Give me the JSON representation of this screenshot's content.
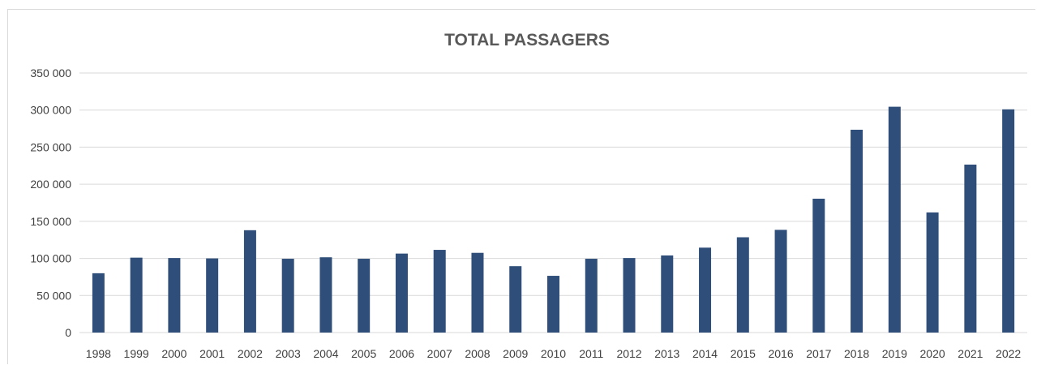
{
  "chart_data": {
    "type": "bar",
    "title": "TOTAL PASSAGERS",
    "xlabel": "",
    "ylabel": "",
    "categories": [
      "1998",
      "1999",
      "2000",
      "2001",
      "2002",
      "2003",
      "2004",
      "2005",
      "2006",
      "2007",
      "2008",
      "2009",
      "2010",
      "2011",
      "2012",
      "2013",
      "2014",
      "2015",
      "2016",
      "2017",
      "2018",
      "2019",
      "2020",
      "2021",
      "2022"
    ],
    "values": [
      80000,
      101000,
      100500,
      100000,
      138000,
      99500,
      101500,
      99500,
      106500,
      111500,
      107500,
      89500,
      76500,
      99500,
      100500,
      104000,
      114500,
      128500,
      138500,
      180500,
      273500,
      304500,
      162000,
      226500,
      301000
    ],
    "ylim": [
      0,
      350000
    ],
    "y_ticks": [
      0,
      50000,
      100000,
      150000,
      200000,
      250000,
      300000,
      350000
    ],
    "y_tick_labels": [
      "0",
      "50 000",
      "100 000",
      "150 000",
      "200 000",
      "250 000",
      "300 000",
      "350 000"
    ],
    "grid": true,
    "legend": "none",
    "bar_color": "#2f4f7a",
    "grid_color": "#d9d9d9"
  }
}
